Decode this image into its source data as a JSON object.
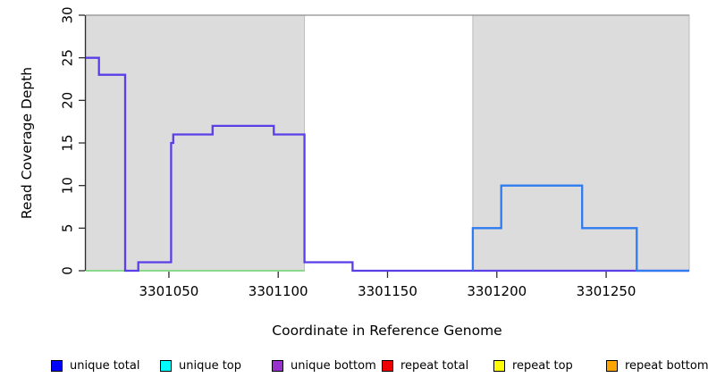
{
  "figure": {
    "background": "#ffffff",
    "shade_color": "#dcdcdc",
    "shade_border_color": "#bdbdbd",
    "top_border_color": "#8e8e8e",
    "axis_color": "#2e2e2e",
    "text_color": "#000000"
  },
  "chart_data": {
    "type": "line",
    "step": true,
    "title": "",
    "xlabel": "Coordinate in Reference Genome",
    "ylabel": "Read Coverage Depth",
    "xlim": [
      3301012,
      3301288
    ],
    "ylim": [
      0,
      30
    ],
    "x_ticks": [
      3301050,
      3301100,
      3301150,
      3301200,
      3301250
    ],
    "y_ticks": [
      0,
      5,
      10,
      15,
      20,
      25,
      30
    ],
    "grid": false,
    "legend_position": "bottom",
    "shaded_regions": [
      {
        "from": 3301012,
        "to": 3301112
      },
      {
        "from": 3301189,
        "to": 3301288
      }
    ],
    "series": [
      {
        "name": "baseline-left-green",
        "color": "#7fd67f",
        "width": 1.8,
        "points": [
          [
            3301012,
            0
          ],
          [
            3301112,
            0
          ]
        ]
      },
      {
        "name": "repeat-total-baseline-red",
        "color": "#e04a66",
        "width": 1.8,
        "points": [
          [
            3301189,
            0
          ],
          [
            3301264,
            0
          ]
        ]
      },
      {
        "name": "unique-coverage-left-violet",
        "color": "#5a3fe8",
        "width": 2.3,
        "points": [
          [
            3301012,
            25
          ],
          [
            3301018,
            25
          ],
          [
            3301018,
            23
          ],
          [
            3301030,
            23
          ],
          [
            3301030,
            0
          ],
          [
            3301036,
            0
          ],
          [
            3301036,
            1
          ],
          [
            3301051,
            1
          ],
          [
            3301051,
            15
          ],
          [
            3301052,
            15
          ],
          [
            3301052,
            16
          ],
          [
            3301070,
            16
          ],
          [
            3301070,
            17
          ],
          [
            3301098,
            17
          ],
          [
            3301098,
            16
          ],
          [
            3301112,
            16
          ],
          [
            3301112,
            1
          ],
          [
            3301134,
            1
          ],
          [
            3301134,
            0
          ],
          [
            3301288,
            0
          ]
        ]
      },
      {
        "name": "unique-coverage-right-blue",
        "color": "#2e7cef",
        "width": 2.3,
        "points": [
          [
            3301189,
            0
          ],
          [
            3301189,
            5
          ],
          [
            3301202,
            5
          ],
          [
            3301202,
            10
          ],
          [
            3301239,
            10
          ],
          [
            3301239,
            5
          ],
          [
            3301264,
            5
          ],
          [
            3301264,
            0
          ],
          [
            3301288,
            0
          ]
        ]
      }
    ],
    "legend": [
      {
        "label": "unique total",
        "color": "#0000ff"
      },
      {
        "label": "unique top",
        "color": "#00ffff"
      },
      {
        "label": "unique bottom",
        "color": "#9932cc"
      },
      {
        "label": "repeat total",
        "color": "#ee0000"
      },
      {
        "label": "repeat top",
        "color": "#ffff00"
      },
      {
        "label": "repeat bottom",
        "color": "#ffa500"
      }
    ]
  }
}
